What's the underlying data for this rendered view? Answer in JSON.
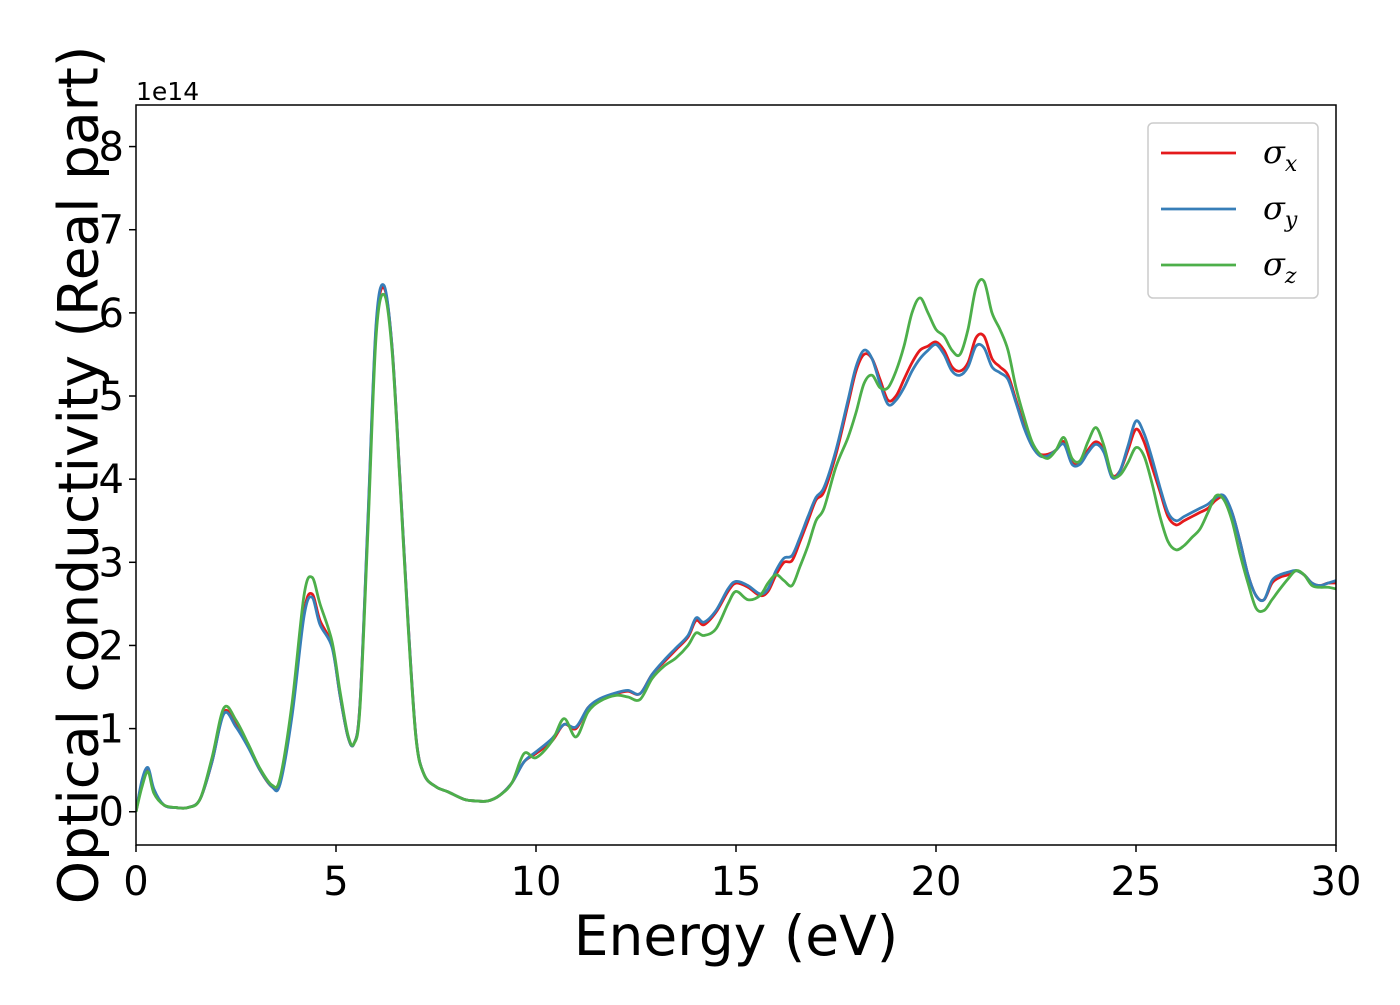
{
  "chart_data": {
    "type": "line",
    "xlabel": "Energy (eV)",
    "ylabel": "Optical conductivity (Real part)",
    "y_offset_label": "1e14",
    "xlim": [
      0,
      30
    ],
    "ylim": [
      -0.4,
      8.5
    ],
    "x_ticks": [
      0,
      5,
      10,
      15,
      20,
      25,
      30
    ],
    "y_ticks": [
      0,
      1,
      2,
      3,
      4,
      5,
      6,
      7,
      8
    ],
    "x_tick_labels": [
      "0",
      "5",
      "10",
      "15",
      "20",
      "25",
      "30"
    ],
    "y_tick_labels": [
      "0",
      "1",
      "2",
      "3",
      "4",
      "5",
      "6",
      "7",
      "8"
    ],
    "grid": false,
    "legend_position": "top-right",
    "series": [
      {
        "name": "σ_x",
        "legend_main": "σ",
        "legend_sub": "x",
        "color": "#e41a1c",
        "x": [
          0,
          0.15,
          0.3,
          0.45,
          0.7,
          1.0,
          1.3,
          1.6,
          1.9,
          2.2,
          2.5,
          2.8,
          3.1,
          3.4,
          3.6,
          3.9,
          4.2,
          4.4,
          4.6,
          4.9,
          5.1,
          5.3,
          5.45,
          5.6,
          5.8,
          6.0,
          6.2,
          6.4,
          6.6,
          6.8,
          7.0,
          7.2,
          7.5,
          7.8,
          8.2,
          8.5,
          8.8,
          9.1,
          9.4,
          9.7,
          10.0,
          10.4,
          10.7,
          11.0,
          11.3,
          11.6,
          12.0,
          12.3,
          12.6,
          12.9,
          13.2,
          13.5,
          13.8,
          14.0,
          14.2,
          14.5,
          14.8,
          15.0,
          15.3,
          15.6,
          15.8,
          16.0,
          16.2,
          16.4,
          16.6,
          16.8,
          17.0,
          17.2,
          17.5,
          17.8,
          18.0,
          18.2,
          18.4,
          18.6,
          18.8,
          19.0,
          19.2,
          19.4,
          19.6,
          19.8,
          20.0,
          20.2,
          20.4,
          20.6,
          20.8,
          21.0,
          21.2,
          21.4,
          21.6,
          21.8,
          22.0,
          22.2,
          22.4,
          22.6,
          22.8,
          23.0,
          23.2,
          23.4,
          23.6,
          23.8,
          24.0,
          24.2,
          24.4,
          24.6,
          24.8,
          25.0,
          25.2,
          25.4,
          25.6,
          25.8,
          26.0,
          26.2,
          26.4,
          26.6,
          26.8,
          27.0,
          27.2,
          27.4,
          27.6,
          27.8,
          28.0,
          28.2,
          28.4,
          28.6,
          28.8,
          29.0,
          29.2,
          29.4,
          29.6,
          29.8,
          30.0
        ],
        "y": [
          0,
          0.35,
          0.5,
          0.25,
          0.08,
          0.05,
          0.05,
          0.15,
          0.6,
          1.2,
          1.05,
          0.8,
          0.5,
          0.3,
          0.35,
          1.2,
          2.4,
          2.62,
          2.3,
          2.0,
          1.4,
          0.9,
          0.82,
          1.3,
          3.5,
          5.8,
          6.3,
          5.6,
          4.0,
          2.3,
          0.9,
          0.45,
          0.3,
          0.24,
          0.15,
          0.13,
          0.13,
          0.2,
          0.35,
          0.6,
          0.7,
          0.85,
          1.05,
          1.0,
          1.25,
          1.35,
          1.42,
          1.45,
          1.42,
          1.65,
          1.8,
          1.95,
          2.1,
          2.3,
          2.25,
          2.4,
          2.65,
          2.75,
          2.7,
          2.6,
          2.65,
          2.85,
          3.0,
          3.02,
          3.25,
          3.5,
          3.75,
          3.85,
          4.3,
          4.9,
          5.3,
          5.5,
          5.45,
          5.2,
          4.95,
          5.0,
          5.2,
          5.4,
          5.55,
          5.6,
          5.65,
          5.55,
          5.35,
          5.3,
          5.4,
          5.7,
          5.72,
          5.45,
          5.35,
          5.25,
          4.95,
          4.65,
          4.4,
          4.3,
          4.3,
          4.35,
          4.45,
          4.2,
          4.2,
          4.35,
          4.45,
          4.35,
          4.05,
          4.1,
          4.35,
          4.6,
          4.45,
          4.15,
          3.85,
          3.55,
          3.45,
          3.5,
          3.55,
          3.6,
          3.65,
          3.75,
          3.78,
          3.6,
          3.25,
          2.85,
          2.6,
          2.55,
          2.75,
          2.82,
          2.85,
          2.9,
          2.85,
          2.75,
          2.72,
          2.75,
          2.75
        ]
      },
      {
        "name": "σ_y",
        "legend_main": "σ",
        "legend_sub": "y",
        "color": "#377eb8",
        "x": [
          0,
          0.15,
          0.3,
          0.45,
          0.7,
          1.0,
          1.3,
          1.6,
          1.9,
          2.2,
          2.5,
          2.8,
          3.1,
          3.4,
          3.6,
          3.9,
          4.2,
          4.4,
          4.6,
          4.9,
          5.1,
          5.3,
          5.45,
          5.6,
          5.8,
          6.0,
          6.2,
          6.4,
          6.6,
          6.8,
          7.0,
          7.2,
          7.5,
          7.8,
          8.2,
          8.5,
          8.8,
          9.1,
          9.4,
          9.7,
          10.0,
          10.4,
          10.7,
          11.0,
          11.3,
          11.6,
          12.0,
          12.3,
          12.6,
          12.9,
          13.2,
          13.5,
          13.8,
          14.0,
          14.2,
          14.5,
          14.8,
          15.0,
          15.3,
          15.6,
          15.8,
          16.0,
          16.2,
          16.4,
          16.6,
          16.8,
          17.0,
          17.2,
          17.5,
          17.8,
          18.0,
          18.2,
          18.4,
          18.6,
          18.8,
          19.0,
          19.2,
          19.4,
          19.6,
          19.8,
          20.0,
          20.2,
          20.4,
          20.6,
          20.8,
          21.0,
          21.2,
          21.4,
          21.6,
          21.8,
          22.0,
          22.2,
          22.4,
          22.6,
          22.8,
          23.0,
          23.2,
          23.4,
          23.6,
          23.8,
          24.0,
          24.2,
          24.4,
          24.6,
          24.8,
          25.0,
          25.2,
          25.4,
          25.6,
          25.8,
          26.0,
          26.2,
          26.4,
          26.6,
          26.8,
          27.0,
          27.2,
          27.4,
          27.6,
          27.8,
          28.0,
          28.2,
          28.4,
          28.6,
          28.8,
          29.0,
          29.2,
          29.4,
          29.6,
          29.8,
          30.0
        ],
        "y": [
          0,
          0.38,
          0.53,
          0.27,
          0.08,
          0.05,
          0.05,
          0.15,
          0.6,
          1.18,
          1.02,
          0.78,
          0.5,
          0.3,
          0.33,
          1.15,
          2.35,
          2.58,
          2.25,
          1.98,
          1.4,
          0.9,
          0.82,
          1.3,
          3.55,
          5.85,
          6.33,
          5.6,
          4.0,
          2.3,
          0.9,
          0.45,
          0.3,
          0.24,
          0.15,
          0.13,
          0.13,
          0.2,
          0.35,
          0.6,
          0.72,
          0.88,
          1.05,
          1.02,
          1.25,
          1.36,
          1.43,
          1.46,
          1.42,
          1.65,
          1.82,
          1.97,
          2.12,
          2.33,
          2.28,
          2.42,
          2.68,
          2.77,
          2.72,
          2.62,
          2.68,
          2.9,
          3.05,
          3.08,
          3.3,
          3.55,
          3.78,
          3.9,
          4.35,
          4.95,
          5.35,
          5.55,
          5.45,
          5.15,
          4.9,
          4.95,
          5.1,
          5.3,
          5.45,
          5.55,
          5.62,
          5.5,
          5.3,
          5.25,
          5.35,
          5.6,
          5.58,
          5.35,
          5.28,
          5.2,
          4.92,
          4.62,
          4.4,
          4.28,
          4.28,
          4.35,
          4.42,
          4.18,
          4.18,
          4.32,
          4.42,
          4.32,
          4.02,
          4.1,
          4.4,
          4.7,
          4.55,
          4.25,
          3.9,
          3.6,
          3.5,
          3.55,
          3.6,
          3.65,
          3.7,
          3.78,
          3.8,
          3.6,
          3.25,
          2.85,
          2.6,
          2.55,
          2.78,
          2.85,
          2.88,
          2.9,
          2.85,
          2.75,
          2.72,
          2.75,
          2.78
        ]
      },
      {
        "name": "σ_z",
        "legend_main": "σ",
        "legend_sub": "z",
        "color": "#4daf4a",
        "x": [
          0,
          0.15,
          0.3,
          0.45,
          0.7,
          1.0,
          1.3,
          1.6,
          1.9,
          2.2,
          2.5,
          2.8,
          3.1,
          3.4,
          3.6,
          3.9,
          4.2,
          4.4,
          4.6,
          4.9,
          5.1,
          5.3,
          5.45,
          5.6,
          5.8,
          6.0,
          6.2,
          6.4,
          6.6,
          6.8,
          7.0,
          7.2,
          7.5,
          7.8,
          8.2,
          8.5,
          8.8,
          9.1,
          9.4,
          9.7,
          10.0,
          10.4,
          10.7,
          11.0,
          11.3,
          11.6,
          12.0,
          12.3,
          12.6,
          12.9,
          13.2,
          13.5,
          13.8,
          14.0,
          14.2,
          14.5,
          14.8,
          15.0,
          15.3,
          15.6,
          15.8,
          16.0,
          16.2,
          16.4,
          16.6,
          16.8,
          17.0,
          17.2,
          17.5,
          17.8,
          18.0,
          18.2,
          18.4,
          18.6,
          18.8,
          19.0,
          19.2,
          19.4,
          19.6,
          19.8,
          20.0,
          20.2,
          20.4,
          20.6,
          20.8,
          21.0,
          21.2,
          21.4,
          21.6,
          21.8,
          22.0,
          22.2,
          22.4,
          22.6,
          22.8,
          23.0,
          23.2,
          23.4,
          23.6,
          23.8,
          24.0,
          24.2,
          24.4,
          24.6,
          24.8,
          25.0,
          25.2,
          25.4,
          25.6,
          25.8,
          26.0,
          26.2,
          26.4,
          26.6,
          26.8,
          27.0,
          27.2,
          27.4,
          27.6,
          27.8,
          28.0,
          28.2,
          28.4,
          28.6,
          28.8,
          29.0,
          29.2,
          29.4,
          29.6,
          29.8,
          30.0
        ],
        "y": [
          0,
          0.3,
          0.48,
          0.22,
          0.08,
          0.05,
          0.05,
          0.15,
          0.65,
          1.25,
          1.1,
          0.82,
          0.52,
          0.32,
          0.4,
          1.3,
          2.6,
          2.82,
          2.5,
          2.05,
          1.45,
          0.92,
          0.82,
          1.25,
          3.4,
          5.7,
          6.22,
          5.55,
          3.95,
          2.25,
          0.88,
          0.45,
          0.3,
          0.24,
          0.15,
          0.13,
          0.13,
          0.2,
          0.35,
          0.7,
          0.65,
          0.85,
          1.12,
          0.9,
          1.2,
          1.33,
          1.4,
          1.38,
          1.35,
          1.6,
          1.75,
          1.85,
          2.0,
          2.15,
          2.12,
          2.2,
          2.5,
          2.65,
          2.55,
          2.6,
          2.75,
          2.85,
          2.78,
          2.72,
          2.95,
          3.2,
          3.5,
          3.65,
          4.15,
          4.5,
          4.8,
          5.15,
          5.25,
          5.1,
          5.1,
          5.3,
          5.6,
          6.0,
          6.18,
          6.0,
          5.8,
          5.72,
          5.55,
          5.5,
          5.8,
          6.3,
          6.38,
          6.0,
          5.8,
          5.55,
          5.1,
          4.75,
          4.45,
          4.3,
          4.25,
          4.35,
          4.5,
          4.25,
          4.22,
          4.45,
          4.62,
          4.4,
          4.05,
          4.05,
          4.2,
          4.38,
          4.28,
          3.95,
          3.55,
          3.25,
          3.15,
          3.2,
          3.3,
          3.4,
          3.6,
          3.8,
          3.75,
          3.5,
          3.1,
          2.75,
          2.45,
          2.42,
          2.55,
          2.68,
          2.8,
          2.9,
          2.85,
          2.72,
          2.7,
          2.7,
          2.68
        ]
      }
    ]
  }
}
